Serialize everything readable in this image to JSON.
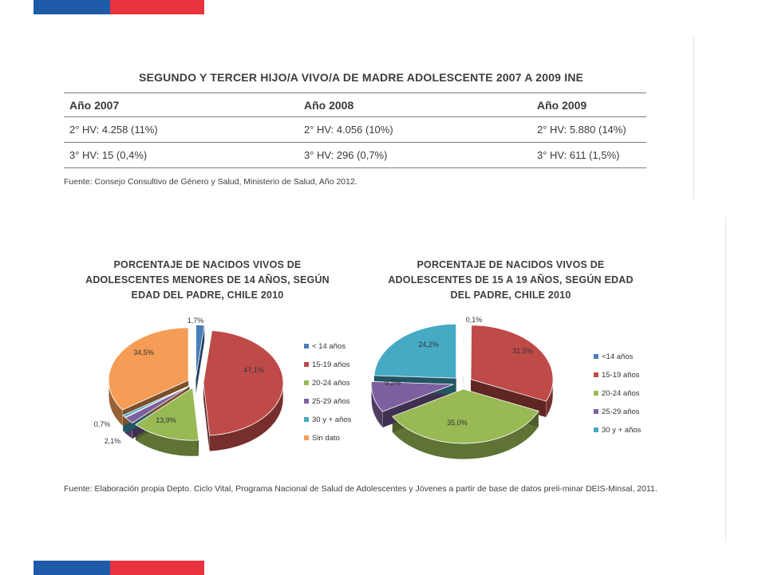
{
  "table": {
    "title": "SEGUNDO Y TERCER HIJO/A VIVO/A DE MADRE ADOLESCENTE 2007 A 2009 INE",
    "headers": [
      "Año 2007",
      "Año 2008",
      "Año 2009"
    ],
    "rows": [
      [
        "2° HV: 4.258 (11%)",
        "2° HV: 4.056 (10%)",
        "2° HV: 5.880 (14%)"
      ],
      [
        "3° HV: 15 (0,4%)",
        "3° HV: 296 (0,7%)",
        "3° HV: 611 (1,5%)"
      ]
    ],
    "source": "Fuente: Consejo Consultivo de Género y Salud, Ministerio de Salud, Año 2012."
  },
  "charts_source": "Fuente: Elaboración propia Depto. Ciclo Vital, Programa Nacional de Salud de Adolescentes y Jóvenes a partir de base de datos preli-minar DEIS-Minsal, 2011.",
  "chart_data": [
    {
      "type": "pie",
      "title": "PORCENTAJE DE NACIDOS VIVOS DE ADOLESCENTES MENORES DE 14 AÑOS, SEGÚN EDAD DEL PADRE, CHILE 2010",
      "categories": [
        "< 14 años",
        "15-19 años",
        "20-24 años",
        "25-29 años",
        "30 y + años",
        "Sin dato"
      ],
      "values": [
        1.7,
        47.1,
        13.9,
        2.1,
        0.7,
        34.5
      ],
      "value_labels": [
        "1,7%",
        "47,1%",
        "13,9%",
        "2,1%",
        "0,7%",
        "34,5%"
      ],
      "colors": [
        "#4a7ebb",
        "#be4b48",
        "#98b954",
        "#7d60a0",
        "#46aac5",
        "#f59d56"
      ],
      "style": "3d-exploded",
      "legend": "right"
    },
    {
      "type": "pie",
      "title": "PORCENTAJE DE NACIDOS VIVOS DE ADOLESCENTES DE 15 A 19 AÑOS, SEGÚN EDAD DEL PADRE, CHILE 2010",
      "categories": [
        "<14 años",
        "15-19 años",
        "20-24 años",
        "25-29 años",
        "30 y + años"
      ],
      "values": [
        0.1,
        31.5,
        35.0,
        9.2,
        24.2
      ],
      "value_labels": [
        "0,1%",
        "31,5%",
        "35,0%",
        "9,2%",
        "24,2%"
      ],
      "colors": [
        "#4a7ebb",
        "#be4b48",
        "#98b954",
        "#7d60a0",
        "#46aac5"
      ],
      "style": "3d-exploded",
      "legend": "right"
    }
  ]
}
